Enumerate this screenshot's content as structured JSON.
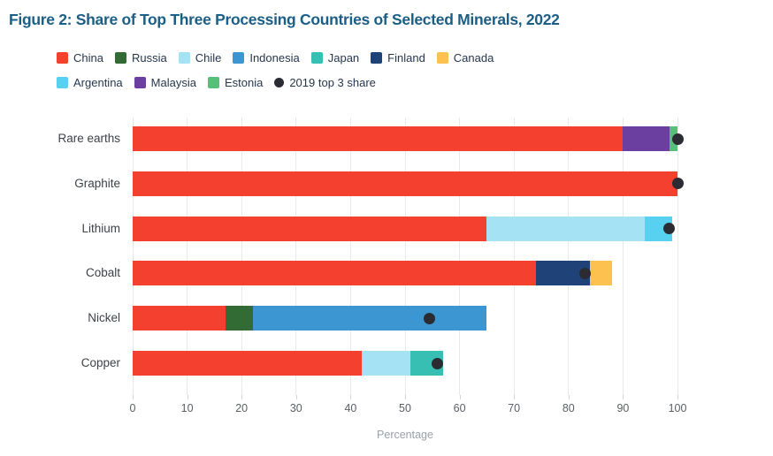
{
  "title": "Figure 2: Share of Top Three Processing Countries of Selected Minerals, 2022",
  "colors": {
    "China": "#f4402e",
    "Russia": "#336b34",
    "Chile": "#a5e2f3",
    "Indonesia": "#3c96d2",
    "Japan": "#38bfb4",
    "Finland": "#1f4378",
    "Canada": "#fcc14e",
    "Argentina": "#57d1ef",
    "Malaysia": "#6b3fa0",
    "Estonia": "#57c078",
    "dot_2019": "#2b2b33",
    "title_text": "#1b5e86",
    "legend_text": "#26374e",
    "category_text": "#3d414a",
    "tick_text": "#595f66",
    "axis_title_text": "#9aa1a8",
    "gridline": "#e7e9ea",
    "tick_mark": "#cfd3d6"
  },
  "legend": {
    "rows": [
      [
        "China",
        "Russia",
        "Chile",
        "Indonesia",
        "Japan",
        "Finland",
        "Canada"
      ],
      [
        "Argentina",
        "Malaysia",
        "Estonia"
      ]
    ],
    "dot_label": "2019 top 3 share"
  },
  "chart_data": {
    "type": "bar",
    "orientation": "horizontal",
    "stacked": true,
    "title": "Figure 2: Share of Top Three Processing Countries of Selected Minerals, 2022",
    "xlabel": "Percentage",
    "ylabel": "",
    "xlim": [
      0,
      100
    ],
    "xticks": [
      0,
      10,
      20,
      30,
      40,
      50,
      60,
      70,
      80,
      90,
      100
    ],
    "grid": "vertical",
    "legend_position": "top",
    "dot_series_name": "2019 top 3 share",
    "categories": [
      "Rare earths",
      "Graphite",
      "Lithium",
      "Cobalt",
      "Nickel",
      "Copper"
    ],
    "rows": [
      {
        "category": "Rare earths",
        "segments": [
          {
            "country": "China",
            "value": 90
          },
          {
            "country": "Malaysia",
            "value": 8.5
          },
          {
            "country": "Estonia",
            "value": 1.5
          }
        ],
        "dot_2019": 100
      },
      {
        "category": "Graphite",
        "segments": [
          {
            "country": "China",
            "value": 100
          }
        ],
        "dot_2019": 100
      },
      {
        "category": "Lithium",
        "segments": [
          {
            "country": "China",
            "value": 65
          },
          {
            "country": "Chile",
            "value": 29
          },
          {
            "country": "Argentina",
            "value": 5
          }
        ],
        "dot_2019": 98.5
      },
      {
        "category": "Cobalt",
        "segments": [
          {
            "country": "China",
            "value": 74
          },
          {
            "country": "Finland",
            "value": 10
          },
          {
            "country": "Canada",
            "value": 4
          }
        ],
        "dot_2019": 83
      },
      {
        "category": "Nickel",
        "segments": [
          {
            "country": "China",
            "value": 17
          },
          {
            "country": "Russia",
            "value": 5
          },
          {
            "country": "Indonesia",
            "value": 43
          }
        ],
        "dot_2019": 54.5
      },
      {
        "category": "Copper",
        "segments": [
          {
            "country": "China",
            "value": 42
          },
          {
            "country": "Chile",
            "value": 9
          },
          {
            "country": "Japan",
            "value": 6
          }
        ],
        "dot_2019": 56
      }
    ]
  }
}
